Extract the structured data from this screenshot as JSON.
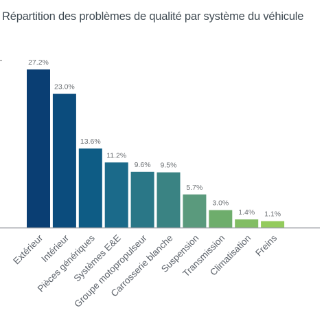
{
  "chart_data": {
    "type": "bar",
    "title": "Répartition des problèmes de qualité par système du véhicule",
    "xlabel": "",
    "ylabel": "",
    "categories": [
      "Extérieur",
      "Intérieur",
      "Pièces génériques",
      "Systèmes E&E",
      "Groupe motopropulseur",
      "Carrosserie blanche",
      "Suspension",
      "Transmission",
      "Climatisation",
      "Freins"
    ],
    "values": [
      27.2,
      23.0,
      13.6,
      11.2,
      9.6,
      9.5,
      5.7,
      3.0,
      1.4,
      1.1
    ],
    "value_labels": [
      "27.2%",
      "23.0%",
      "13.6%",
      "11.2%",
      "9.6%",
      "9.5%",
      "5.7%",
      "3.0%",
      "1.4%",
      "1.1%"
    ],
    "colors": [
      "#0a3e73",
      "#0b4c7d",
      "#0e5c85",
      "#1b6a8a",
      "#2a7787",
      "#3a8383",
      "#5a9a7d",
      "#6ead6c",
      "#82bd64",
      "#93cb5c"
    ],
    "ylim": [
      0,
      28
    ],
    "grid": false,
    "legend": "none"
  }
}
